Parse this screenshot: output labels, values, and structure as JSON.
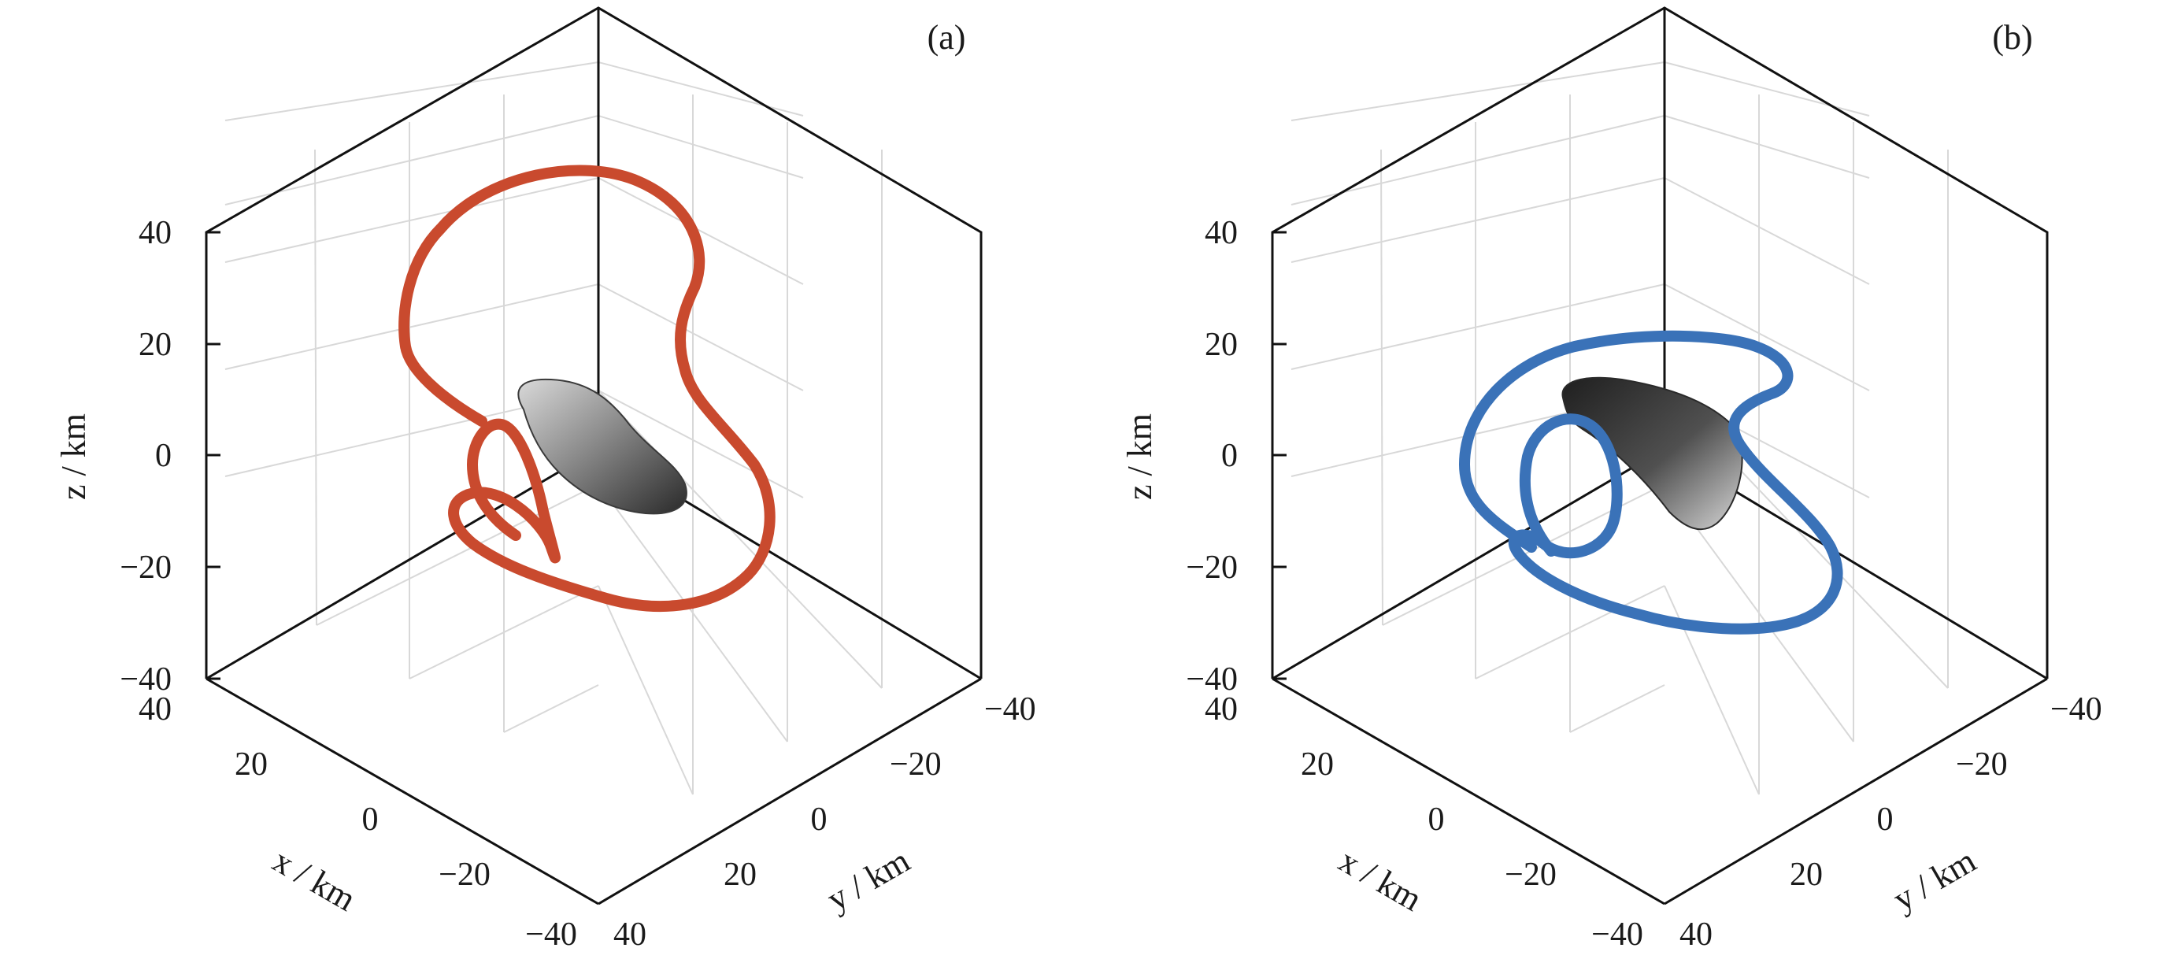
{
  "chart_data": [
    {
      "type": "line",
      "subtitle": "(a)",
      "xlabel": "x / km",
      "ylabel": "y / km",
      "zlabel": "z / km",
      "xlim": [
        -40,
        40
      ],
      "ylim": [
        -40,
        40
      ],
      "zlim": [
        -40,
        40
      ],
      "x_ticks": [
        "40",
        "20",
        "0",
        "−20",
        "−40"
      ],
      "y_ticks": [
        "−40",
        "−20",
        "0",
        "20",
        "40"
      ],
      "z_ticks": [
        "40",
        "20",
        "0",
        "−20",
        "−40"
      ],
      "grid": true,
      "series": [
        {
          "color": "#c94a2e",
          "style": "orbit"
        }
      ],
      "body_color": "#6e6e6e"
    },
    {
      "type": "line",
      "subtitle": "(b)",
      "xlabel": "x / km",
      "ylabel": "y / km",
      "zlabel": "z / km",
      "xlim": [
        -40,
        40
      ],
      "ylim": [
        -40,
        40
      ],
      "zlim": [
        -40,
        40
      ],
      "x_ticks": [
        "40",
        "20",
        "0",
        "−20",
        "−40"
      ],
      "y_ticks": [
        "−40",
        "−20",
        "0",
        "20",
        "40"
      ],
      "z_ticks": [
        "40",
        "20",
        "0",
        "−20",
        "−40"
      ],
      "grid": true,
      "series": [
        {
          "color": "#3a72b8",
          "style": "orbit"
        }
      ],
      "body_color": "#4a4a4a"
    }
  ]
}
